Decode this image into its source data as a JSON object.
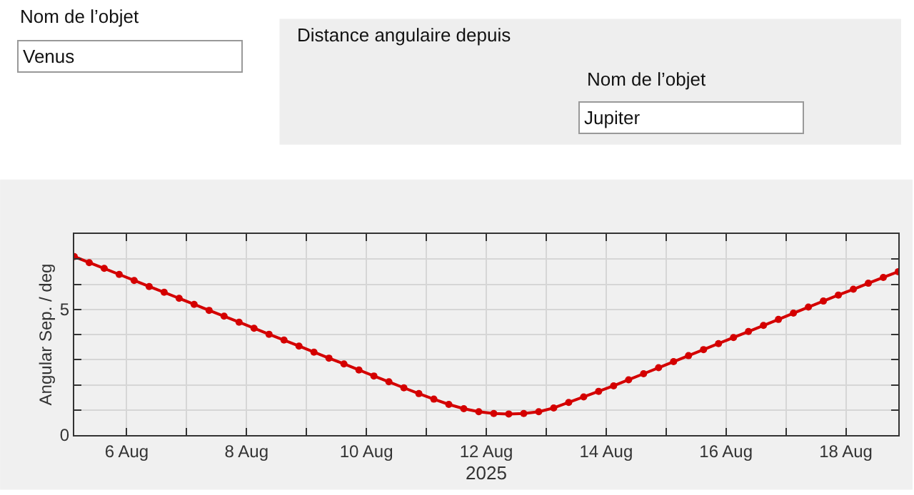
{
  "chart_data": {
    "type": "line",
    "xlabel": "2025",
    "ylabel": "Angular Sep. / deg",
    "annotations": [
      "Nom de l’objet",
      "Venus",
      "Distance angulaire depuis",
      "Nom de l’objet",
      "Jupiter"
    ],
    "xlim": [
      "2025-08-05T03:00",
      "2025-08-18T21:00"
    ],
    "xticks": [
      {
        "value": "2025-08-06",
        "label": "6 Aug"
      },
      {
        "value": "2025-08-07",
        "label": null
      },
      {
        "value": "2025-08-08",
        "label": "8 Aug"
      },
      {
        "value": "2025-08-09",
        "label": null
      },
      {
        "value": "2025-08-10",
        "label": "10 Aug"
      },
      {
        "value": "2025-08-11",
        "label": null
      },
      {
        "value": "2025-08-12",
        "label": "12 Aug"
      },
      {
        "value": "2025-08-13",
        "label": null
      },
      {
        "value": "2025-08-14",
        "label": "14 Aug"
      },
      {
        "value": "2025-08-15",
        "label": null
      },
      {
        "value": "2025-08-16",
        "label": "16 Aug"
      },
      {
        "value": "2025-08-17",
        "label": null
      },
      {
        "value": "2025-08-18",
        "label": "18 Aug"
      }
    ],
    "ylim": [
      0,
      8
    ],
    "yticks": [
      0,
      {
        "value": 1,
        "label": null
      },
      {
        "value": 2,
        "label": null
      },
      {
        "value": 3,
        "label": null
      },
      {
        "value": 4,
        "label": null
      },
      5,
      {
        "value": 6,
        "label": null
      },
      {
        "value": 7,
        "label": null
      }
    ],
    "grid": true,
    "legend": false,
    "marker": "circle",
    "line_style": "solid",
    "series": [
      {
        "color": "#d40000",
        "x": [
          "2025-08-05T03:00",
          "2025-08-05T09:00",
          "2025-08-05T15:00",
          "2025-08-05T21:00",
          "2025-08-06T03:00",
          "2025-08-06T09:00",
          "2025-08-06T15:00",
          "2025-08-06T21:00",
          "2025-08-07T03:00",
          "2025-08-07T09:00",
          "2025-08-07T15:00",
          "2025-08-07T21:00",
          "2025-08-08T03:00",
          "2025-08-08T09:00",
          "2025-08-08T15:00",
          "2025-08-08T21:00",
          "2025-08-09T03:00",
          "2025-08-09T09:00",
          "2025-08-09T15:00",
          "2025-08-09T21:00",
          "2025-08-10T03:00",
          "2025-08-10T09:00",
          "2025-08-10T15:00",
          "2025-08-10T21:00",
          "2025-08-11T03:00",
          "2025-08-11T09:00",
          "2025-08-11T15:00",
          "2025-08-11T21:00",
          "2025-08-12T03:00",
          "2025-08-12T09:00",
          "2025-08-12T15:00",
          "2025-08-12T21:00",
          "2025-08-13T03:00",
          "2025-08-13T09:00",
          "2025-08-13T15:00",
          "2025-08-13T21:00",
          "2025-08-14T03:00",
          "2025-08-14T09:00",
          "2025-08-14T15:00",
          "2025-08-14T21:00",
          "2025-08-15T03:00",
          "2025-08-15T09:00",
          "2025-08-15T15:00",
          "2025-08-15T21:00",
          "2025-08-16T03:00",
          "2025-08-16T09:00",
          "2025-08-16T15:00",
          "2025-08-16T21:00",
          "2025-08-17T03:00",
          "2025-08-17T09:00",
          "2025-08-17T15:00",
          "2025-08-17T21:00",
          "2025-08-18T03:00",
          "2025-08-18T09:00",
          "2025-08-18T15:00",
          "2025-08-18T21:00"
        ],
        "values": [
          7.1,
          6.86,
          6.63,
          6.39,
          6.15,
          5.91,
          5.68,
          5.44,
          5.2,
          4.96,
          4.73,
          4.49,
          4.25,
          4.01,
          3.78,
          3.54,
          3.3,
          3.06,
          2.83,
          2.59,
          2.35,
          2.12,
          1.88,
          1.65,
          1.43,
          1.22,
          1.05,
          0.93,
          0.86,
          0.84,
          0.86,
          0.93,
          1.08,
          1.3,
          1.52,
          1.74,
          1.96,
          2.2,
          2.44,
          2.68,
          2.92,
          3.16,
          3.4,
          3.64,
          3.88,
          4.12,
          4.36,
          4.6,
          4.85,
          5.09,
          5.33,
          5.57,
          5.8,
          6.04,
          6.27,
          6.5
        ]
      }
    ]
  }
}
